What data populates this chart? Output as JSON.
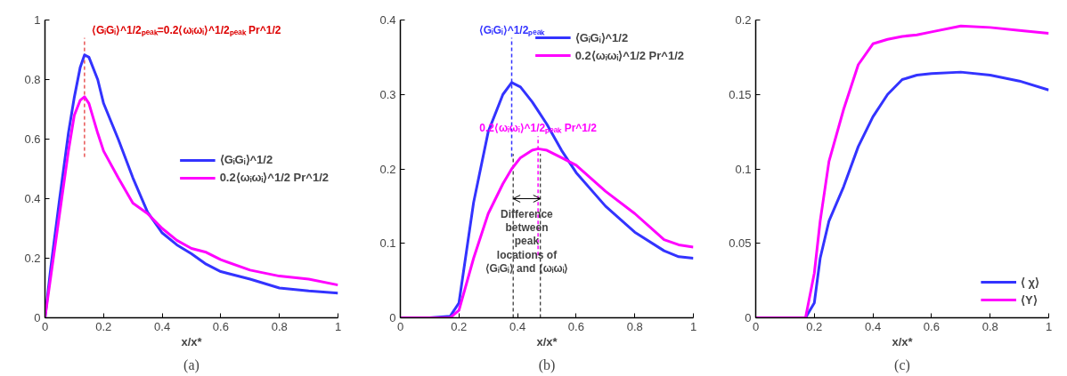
{
  "chart_data": [
    {
      "type": "line",
      "xlabel": "x/x*",
      "xlim": [
        0,
        1
      ],
      "ylim": [
        0,
        1
      ],
      "xticks": [
        0,
        0.2,
        0.4,
        0.6,
        0.8,
        1
      ],
      "yticks": [
        0,
        0.2,
        0.4,
        0.6,
        0.8,
        1
      ],
      "grid": false,
      "legend": "right",
      "x": [
        0,
        0.02,
        0.05,
        0.08,
        0.1,
        0.12,
        0.135,
        0.15,
        0.18,
        0.2,
        0.25,
        0.3,
        0.35,
        0.4,
        0.45,
        0.5,
        0.55,
        0.6,
        0.7,
        0.8,
        0.9,
        1
      ],
      "series": [
        {
          "name": "⟨GᵢGᵢ⟩^1/2",
          "color": "#3333ff",
          "values": [
            0,
            0.17,
            0.4,
            0.62,
            0.74,
            0.84,
            0.883,
            0.875,
            0.8,
            0.72,
            0.6,
            0.47,
            0.355,
            0.285,
            0.245,
            0.215,
            0.18,
            0.155,
            0.13,
            0.1,
            0.09,
            0.083
          ]
        },
        {
          "name": "0.2⟨ωᵢωᵢ⟩^1/2 Pr^1/2",
          "color": "#ff00ff",
          "values": [
            0,
            0.14,
            0.35,
            0.56,
            0.68,
            0.73,
            0.742,
            0.72,
            0.62,
            0.56,
            0.47,
            0.385,
            0.35,
            0.3,
            0.26,
            0.233,
            0.22,
            0.195,
            0.16,
            0.14,
            0.13,
            0.11
          ]
        }
      ],
      "ref_lines": [
        {
          "axis": "x",
          "value": 0.135,
          "color": "#dd0000",
          "line_style": "dashed"
        }
      ],
      "annotations": [
        "⟨GᵢGᵢ⟩^1/2ₚₑₐₖ=0.2⟨ωᵢωᵢ⟩^1/2ₚₑₐₖ Pr^1/2",
        "(a)"
      ]
    },
    {
      "type": "line",
      "xlabel": "x/x*",
      "xlim": [
        0,
        1
      ],
      "ylim": [
        0,
        0.4
      ],
      "xticks": [
        0,
        0.2,
        0.4,
        0.6,
        0.8,
        1
      ],
      "yticks": [
        0,
        0.1,
        0.2,
        0.3,
        0.4
      ],
      "grid": false,
      "legend": "top right",
      "x": [
        0,
        0.1,
        0.17,
        0.2,
        0.25,
        0.3,
        0.35,
        0.38,
        0.41,
        0.45,
        0.47,
        0.5,
        0.55,
        0.6,
        0.7,
        0.8,
        0.9,
        0.95,
        1
      ],
      "series": [
        {
          "name": "⟨GᵢGᵢ⟩^1/2",
          "color": "#3333ff",
          "values": [
            0,
            0,
            0.002,
            0.02,
            0.155,
            0.25,
            0.3,
            0.316,
            0.31,
            0.29,
            0.278,
            0.26,
            0.225,
            0.195,
            0.15,
            0.115,
            0.09,
            0.082,
            0.08
          ]
        },
        {
          "name": "0.2⟨ωᵢωᵢ⟩^1/2 Pr^1/2",
          "color": "#ff00ff",
          "values": [
            0,
            0,
            0,
            0.01,
            0.08,
            0.14,
            0.18,
            0.2,
            0.215,
            0.225,
            0.227,
            0.225,
            0.215,
            0.205,
            0.17,
            0.14,
            0.105,
            0.098,
            0.095
          ]
        }
      ],
      "ref_lines": [
        {
          "axis": "x",
          "value": 0.38,
          "label": "⟨GᵢGᵢ⟩^1/2ₚₑₐₖ",
          "color": "#3333ff",
          "line_style": "dashed"
        },
        {
          "axis": "x",
          "value": 0.47,
          "label": "0.2⟨ωᵢωᵢ⟩^1/2ₚₑₐₖ Pr^1/2",
          "color": "#ff00ff",
          "line_style": "dashed"
        },
        {
          "axis": "x",
          "value": 0.385,
          "color": "#000000",
          "line_style": "dashed"
        },
        {
          "axis": "x",
          "value": 0.478,
          "color": "#000000",
          "line_style": "dashed"
        }
      ],
      "annotations": [
        "Difference\nbetween\npeak\nlocations of\n⟨GᵢGᵢ⟩ and ⟨ωᵢωᵢ⟩",
        "(b)"
      ]
    },
    {
      "type": "line",
      "xlabel": "x/x*",
      "xlim": [
        0,
        1
      ],
      "ylim": [
        0,
        0.2
      ],
      "xticks": [
        0,
        0.2,
        0.4,
        0.6,
        0.8,
        1
      ],
      "yticks": [
        0,
        0.05,
        0.1,
        0.15,
        0.2
      ],
      "grid": false,
      "legend": "bottom right",
      "x": [
        0,
        0.1,
        0.17,
        0.2,
        0.22,
        0.25,
        0.3,
        0.35,
        0.4,
        0.45,
        0.5,
        0.55,
        0.6,
        0.7,
        0.8,
        0.9,
        1
      ],
      "series": [
        {
          "name": "⟨ χ⟩",
          "color": "#3333ff",
          "values": [
            0,
            0,
            0,
            0.01,
            0.04,
            0.065,
            0.088,
            0.115,
            0.135,
            0.15,
            0.16,
            0.163,
            0.164,
            0.165,
            0.163,
            0.159,
            0.153
          ]
        },
        {
          "name": "⟨Y⟩",
          "color": "#ff00ff",
          "values": [
            0,
            0,
            0,
            0.03,
            0.065,
            0.105,
            0.14,
            0.17,
            0.184,
            0.187,
            0.189,
            0.19,
            0.192,
            0.196,
            0.195,
            0.193,
            0.191
          ]
        }
      ],
      "annotations": [
        "(c)"
      ]
    }
  ]
}
